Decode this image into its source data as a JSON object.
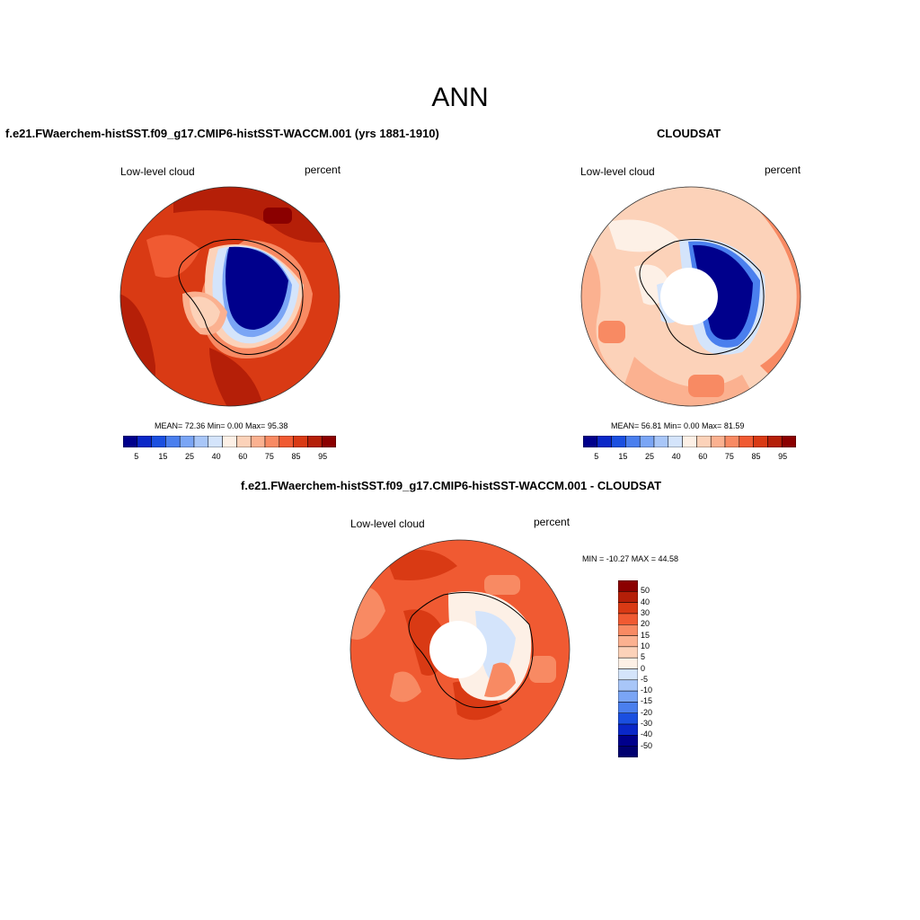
{
  "page": {
    "title": "ANN"
  },
  "panels": [
    {
      "title": "f.e21.FWaerchem-histSST.f09_g17.CMIP6-histSST-WACCM.001 (yrs 1881-1910)",
      "left_label": "Low-level cloud",
      "right_label": "percent",
      "stats": "MEAN=  72.36  Min=   0.00  Max=  95.38"
    },
    {
      "title": "CLOUDSAT",
      "left_label": "Low-level cloud",
      "right_label": "percent",
      "stats": "MEAN=  56.81  Min=   0.00  Max=  81.59"
    },
    {
      "title": "f.e21.FWaerchem-histSST.f09_g17.CMIP6-histSST-WACCM.001 - CLOUDSAT",
      "left_label": "Low-level cloud",
      "right_label": "percent",
      "stats": "MIN = -10.27 MAX =  44.58"
    }
  ],
  "colorbars": {
    "horizontal": {
      "colors": [
        "#00008c",
        "#0a27c8",
        "#1a4fe0",
        "#4a7fee",
        "#7aa5f5",
        "#a8c6f8",
        "#d4e4fb",
        "#fdf0e6",
        "#fcd2b9",
        "#fbb190",
        "#f88a63",
        "#f05a32",
        "#d93a14",
        "#b51f08",
        "#8b0000"
      ],
      "labels": [
        "5",
        "15",
        "25",
        "40",
        "60",
        "75",
        "85",
        "95"
      ]
    },
    "vertical": {
      "colors": [
        "#8b0000",
        "#b51f08",
        "#d93a14",
        "#f05a32",
        "#f88a63",
        "#fbb190",
        "#fcd2b9",
        "#fdf0e6",
        "#d4e4fb",
        "#a8c6f8",
        "#7aa5f5",
        "#4a7fee",
        "#1a4fe0",
        "#0a27c8",
        "#00008c",
        "#000070"
      ],
      "labels": [
        "50",
        "40",
        "30",
        "20",
        "15",
        "10",
        "5",
        "0",
        "-5",
        "-10",
        "-15",
        "-20",
        "-30",
        "-40",
        "-50"
      ]
    }
  }
}
